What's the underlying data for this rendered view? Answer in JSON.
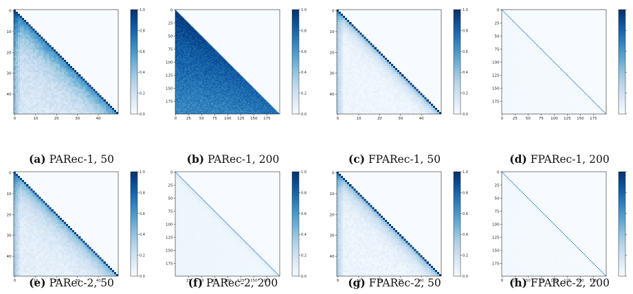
{
  "colorbar": {
    "ticks": [
      "0.0",
      "0.2",
      "0.4",
      "0.6",
      "0.8",
      "1.0"
    ],
    "colormap": "Blues",
    "range": [
      0.0,
      1.0
    ]
  },
  "chart_data": [
    {
      "type": "heatmap",
      "id": "a",
      "caption_label": "(a)",
      "caption_text": "PARec-1, 50",
      "size": 50,
      "xticks": [
        0,
        10,
        20,
        30,
        40
      ],
      "yticks": [
        0,
        10,
        20,
        30,
        40
      ],
      "pattern": "lower-triangular, strong diagonal, broad lower mass"
    },
    {
      "type": "heatmap",
      "id": "b",
      "caption_label": "(b)",
      "caption_text": "PARec-1, 200",
      "size": 200,
      "xticks": [
        0,
        25,
        50,
        75,
        100,
        125,
        150,
        175
      ],
      "yticks": [
        0,
        25,
        50,
        75,
        100,
        125,
        150,
        175
      ],
      "pattern": "lower-triangular, dense medium-blue lower triangle"
    },
    {
      "type": "heatmap",
      "id": "c",
      "caption_label": "(c)",
      "caption_text": "FPARec-1, 50",
      "size": 50,
      "xticks": [
        0,
        10,
        20,
        30,
        40
      ],
      "yticks": [
        0,
        10,
        20,
        30,
        40
      ],
      "pattern": "lower-triangular, strong diagonal, faint lower mass"
    },
    {
      "type": "heatmap",
      "id": "d",
      "caption_label": "(d)",
      "caption_text": "FPARec-1, 200",
      "size": 200,
      "xticks": [
        0,
        25,
        50,
        75,
        100,
        125,
        150,
        175
      ],
      "yticks": [
        0,
        25,
        50,
        75,
        100,
        125,
        150,
        175
      ],
      "pattern": "lower-triangular, thin diagonal only"
    },
    {
      "type": "heatmap",
      "id": "e",
      "caption_label": "(e)",
      "caption_text": "PARec-2, 50",
      "size": 50,
      "xticks": [
        0,
        10,
        20,
        30,
        40
      ],
      "yticks": [
        0,
        10,
        20,
        30,
        40
      ],
      "pattern": "lower-triangular, strong diagonal, moderate lower mass"
    },
    {
      "type": "heatmap",
      "id": "f",
      "caption_label": "(f)",
      "caption_text": "PARec-2, 200",
      "size": 200,
      "xticks": [
        25,
        50,
        75,
        100,
        125,
        150,
        175
      ],
      "yticks": [
        0,
        25,
        50,
        75,
        100,
        125,
        150,
        175
      ],
      "pattern": "lower-triangular, thin diagonal, very faint lower mass"
    },
    {
      "type": "heatmap",
      "id": "g",
      "caption_label": "(g)",
      "caption_text": "FPARec-2, 50",
      "size": 50,
      "xticks": [
        0,
        10,
        20,
        30,
        40
      ],
      "yticks": [
        0,
        10,
        20,
        30,
        40
      ],
      "pattern": "lower-triangular, strong diagonal, faint lower mass"
    },
    {
      "type": "heatmap",
      "id": "h",
      "caption_label": "(h)",
      "caption_text": "FPARec-2, 200",
      "size": 200,
      "xticks": [
        0,
        25,
        50,
        75,
        100,
        125,
        150,
        175
      ],
      "yticks": [
        0,
        25,
        50,
        75,
        100,
        125,
        150,
        175
      ],
      "pattern": "lower-triangular, thin diagonal only"
    }
  ]
}
